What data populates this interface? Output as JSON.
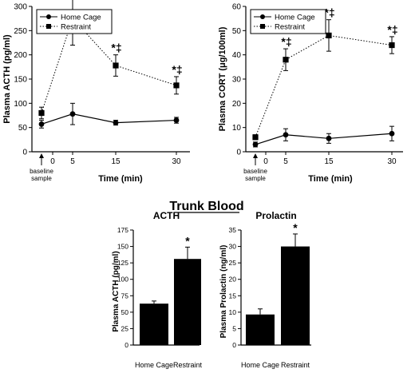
{
  "figure": {
    "section_title": "Trunk Blood",
    "baseline_label": [
      "baseline",
      "sample"
    ]
  },
  "chart_data": [
    {
      "id": "acth-time",
      "type": "line",
      "title": "",
      "xlabel": "Time (min)",
      "ylabel": "Plasma ACTH (pg/ml)",
      "x": [
        0,
        5,
        15,
        30
      ],
      "x_ticks": [
        0,
        5,
        15,
        30
      ],
      "y_ticks": [
        0,
        50,
        100,
        150,
        200,
        250,
        300
      ],
      "ylim": [
        0,
        300
      ],
      "legend": "top-left",
      "series": [
        {
          "name": "Home Cage",
          "marker": "circle",
          "line": "solid",
          "values": [
            57,
            78,
            60,
            65
          ],
          "errors": [
            8,
            22,
            5,
            6
          ],
          "annotations": [
            "",
            "",
            "",
            ""
          ]
        },
        {
          "name": "Restraint",
          "marker": "square",
          "line": "dotted",
          "values": [
            80,
            275,
            178,
            137
          ],
          "errors": [
            12,
            55,
            22,
            18
          ],
          "annotations": [
            "",
            "*‡",
            "*‡",
            "*‡"
          ]
        }
      ]
    },
    {
      "id": "cort-time",
      "type": "line",
      "title": "",
      "xlabel": "Time (min)",
      "ylabel": "Plasma CORT (μg/100ml)",
      "x": [
        0,
        5,
        15,
        30
      ],
      "x_ticks": [
        0,
        5,
        15,
        30
      ],
      "y_ticks": [
        0,
        10,
        20,
        30,
        40,
        50,
        60
      ],
      "ylim": [
        0,
        60
      ],
      "legend": "top-left",
      "series": [
        {
          "name": "Home Cage",
          "marker": "circle",
          "line": "solid",
          "values": [
            3,
            7,
            5.5,
            7.5
          ],
          "errors": [
            1,
            2.5,
            2,
            3
          ],
          "annotations": [
            "",
            "",
            "",
            ""
          ]
        },
        {
          "name": "Restraint",
          "marker": "square",
          "line": "dotted",
          "values": [
            6,
            38,
            48,
            44
          ],
          "errors": [
            1,
            4.5,
            6.5,
            3.5
          ],
          "annotations": [
            "",
            "*‡",
            "*‡",
            "*‡"
          ]
        }
      ]
    },
    {
      "id": "acth-bar",
      "type": "bar",
      "title": "ACTH",
      "xlabel": "",
      "ylabel": "Plasma ACTH (pg/ml)",
      "categories": [
        "Home Cage",
        "Restraint"
      ],
      "values": [
        63,
        131
      ],
      "errors": [
        4,
        18
      ],
      "annotations": [
        "",
        "*"
      ],
      "y_ticks": [
        0,
        25,
        50,
        75,
        100,
        125,
        150,
        175
      ],
      "ylim": [
        0,
        175
      ]
    },
    {
      "id": "prolactin-bar",
      "type": "bar",
      "title": "Prolactin",
      "xlabel": "",
      "ylabel": "Plasma Prolactin (ng/ml)",
      "categories": [
        "Home Cage",
        "Restraint"
      ],
      "values": [
        9.3,
        30
      ],
      "errors": [
        1.7,
        3.8
      ],
      "annotations": [
        "",
        "*"
      ],
      "y_ticks": [
        0,
        5,
        10,
        15,
        20,
        25,
        30,
        35
      ],
      "ylim": [
        0,
        35
      ]
    }
  ]
}
